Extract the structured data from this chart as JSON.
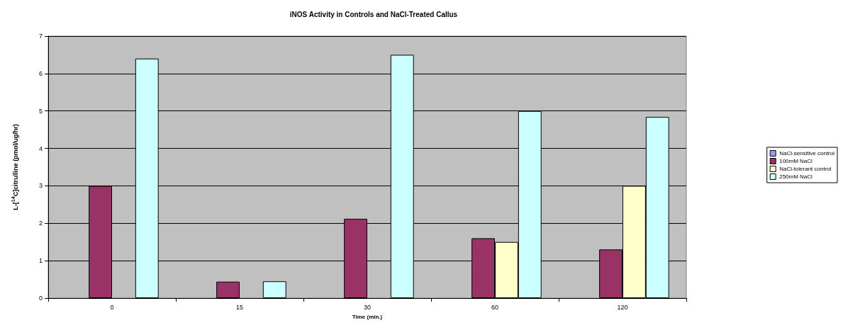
{
  "chart_data": {
    "type": "bar",
    "title": "iNOS Activity in Controls and NaCl-Treated Callus",
    "xlabel": "Time (min.)",
    "ylabel": "L-[$^{14}$C]citrulline (pmol/ug/hr)",
    "categories": [
      "0",
      "15",
      "30",
      "60",
      "120"
    ],
    "series": [
      {
        "name": "NaCl-sensitive control",
        "color": "#9999ff",
        "values": [
          null,
          null,
          null,
          null,
          null
        ]
      },
      {
        "name": "100mM NaCl",
        "color": "#993366",
        "values": [
          3.0,
          0.44,
          2.12,
          1.6,
          1.3
        ]
      },
      {
        "name": "NaCl-tolerant control",
        "color": "#ffffcc",
        "values": [
          null,
          null,
          null,
          1.5,
          3.0
        ]
      },
      {
        "name": "250mM NaCl",
        "color": "#ccffff",
        "values": [
          6.4,
          0.45,
          6.5,
          5.0,
          4.84
        ]
      }
    ],
    "ylim": [
      0,
      7
    ],
    "yticks": [
      0,
      1,
      2,
      3,
      4,
      5,
      6,
      7
    ],
    "grid": "y",
    "legend": "right"
  }
}
